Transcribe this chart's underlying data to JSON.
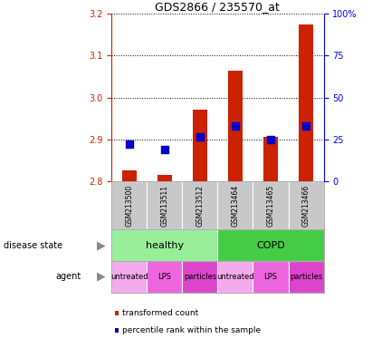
{
  "title": "GDS2866 / 235570_at",
  "samples": [
    "GSM213500",
    "GSM213511",
    "GSM213512",
    "GSM213464",
    "GSM213465",
    "GSM213466"
  ],
  "red_values": [
    2.825,
    2.815,
    2.97,
    3.065,
    2.905,
    3.175
  ],
  "blue_values": [
    2.888,
    2.876,
    2.905,
    2.932,
    2.899,
    2.932
  ],
  "ylim_left": [
    2.8,
    3.2
  ],
  "ylim_right": [
    0,
    100
  ],
  "yticks_left": [
    2.8,
    2.9,
    3.0,
    3.1,
    3.2
  ],
  "yticks_right": [
    0,
    25,
    50,
    75,
    100
  ],
  "ytick_labels_right": [
    "0",
    "25",
    "50",
    "75",
    "100%"
  ],
  "disease_groups": [
    {
      "label": "healthy",
      "start": 0,
      "end": 3,
      "color": "#99EE99"
    },
    {
      "label": "COPD",
      "start": 3,
      "end": 6,
      "color": "#44CC44"
    }
  ],
  "agent_groups": [
    {
      "label": "untreated",
      "start": 0,
      "end": 1,
      "color": "#F5AAEE"
    },
    {
      "label": "LPS",
      "start": 1,
      "end": 2,
      "color": "#EE66DD"
    },
    {
      "label": "particles",
      "start": 2,
      "end": 3,
      "color": "#DD44CC"
    },
    {
      "label": "untreated",
      "start": 3,
      "end": 4,
      "color": "#F5AAEE"
    },
    {
      "label": "LPS",
      "start": 4,
      "end": 5,
      "color": "#EE66DD"
    },
    {
      "label": "particles",
      "start": 5,
      "end": 6,
      "color": "#DD44CC"
    }
  ],
  "bar_color": "#CC2200",
  "dot_color": "#0000CC",
  "bar_width": 0.4,
  "dot_size": 30,
  "legend_items": [
    {
      "label": "transformed count",
      "color": "#CC2200"
    },
    {
      "label": "percentile rank within the sample",
      "color": "#0000CC"
    }
  ],
  "left_tick_color": "#CC2200",
  "right_tick_color": "#0000FF",
  "sample_row_color": "#C8C8C8",
  "label_left_texts": [
    "disease state",
    "agent"
  ],
  "figsize": [
    4.11,
    3.84
  ],
  "dpi": 100
}
